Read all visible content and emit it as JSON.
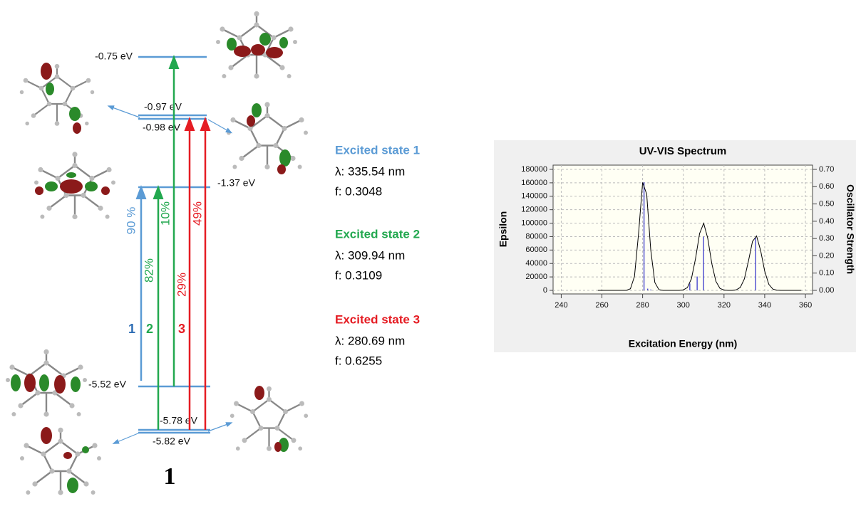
{
  "levels": [
    "-0.75 eV",
    "-0.97 eV",
    "-0.98 eV",
    "-1.37 eV",
    "-5.52 eV",
    "-5.78 eV",
    "-5.82 eV"
  ],
  "transitions": {
    "percentages": [
      "90 %",
      "82%",
      "10%",
      "29%",
      "49%"
    ],
    "numbers": [
      "1",
      "2",
      "3"
    ]
  },
  "excited_states": [
    {
      "title": "Excited state 1",
      "wavelength": "λ: 335.54 nm",
      "f": "f: 0.3048"
    },
    {
      "title": "Excited state 2",
      "wavelength": "λ: 309.94 nm",
      "f": "f: 0.3109"
    },
    {
      "title": "Excited state 3",
      "wavelength": "λ: 280.69 nm",
      "f": "f: 0.6255"
    }
  ],
  "compound_label": "1",
  "spectrum": {
    "type": "line",
    "title": "UV-VIS Spectrum",
    "x_label": "Excitation Energy (nm)",
    "y_label": "Epsilon",
    "y2_label": "Oscillator Strength",
    "xlim": [
      236,
      363.5
    ],
    "xticks": [
      240,
      260,
      280,
      300,
      320,
      340,
      360
    ],
    "ylim": [
      -5300,
      186350
    ],
    "yticks": [
      0,
      20000,
      40000,
      60000,
      80000,
      100000,
      120000,
      140000,
      160000,
      180000
    ],
    "y2lim": [
      -0.0206,
      0.7247
    ],
    "y2ticks": [
      {
        "value": 0,
        "label": "0.00"
      },
      {
        "value": 0.1,
        "label": "0.10"
      },
      {
        "value": 0.2,
        "label": "0.20"
      },
      {
        "value": 0.3,
        "label": "0.30"
      },
      {
        "value": 0.4,
        "label": "0.40"
      },
      {
        "value": 0.5,
        "label": "0.50"
      },
      {
        "value": 0.6,
        "label": "0.60"
      },
      {
        "value": 0.7,
        "label": "0.70"
      }
    ],
    "grid": true,
    "curve": {
      "color": "#000000",
      "x": [
        258,
        260,
        262,
        264,
        266,
        268,
        270,
        272,
        274,
        276,
        278,
        280,
        282,
        284,
        286,
        288,
        290,
        292,
        294,
        296,
        298,
        300,
        302,
        304,
        306,
        308,
        310,
        312,
        314,
        316,
        318,
        320,
        322,
        324,
        326,
        328,
        330,
        332,
        334,
        336,
        338,
        340,
        342,
        344,
        346,
        348,
        350,
        352,
        354,
        356,
        358
      ],
      "values": [
        0,
        0,
        0,
        0,
        0,
        0,
        0,
        0,
        2400,
        20800,
        84300,
        160500,
        143200,
        60000,
        11800,
        1100,
        0,
        0,
        0,
        0,
        0,
        670,
        4200,
        17400,
        47200,
        84500,
        99800,
        77700,
        39900,
        13500,
        3000,
        450,
        0,
        0,
        750,
        4400,
        17000,
        43400,
        72900,
        80900,
        59200,
        28600,
        9100,
        1900,
        260,
        0,
        0,
        0,
        0,
        0,
        0
      ]
    },
    "sticks": {
      "color": "#3a3acc",
      "axis": "y2",
      "x": [
        280.69,
        282.5,
        284,
        303.2,
        306.8,
        309.94,
        335.54
      ],
      "values": [
        0.6255,
        0.01,
        0.005,
        0.04,
        0.08,
        0.3109,
        0.3048
      ]
    }
  }
}
